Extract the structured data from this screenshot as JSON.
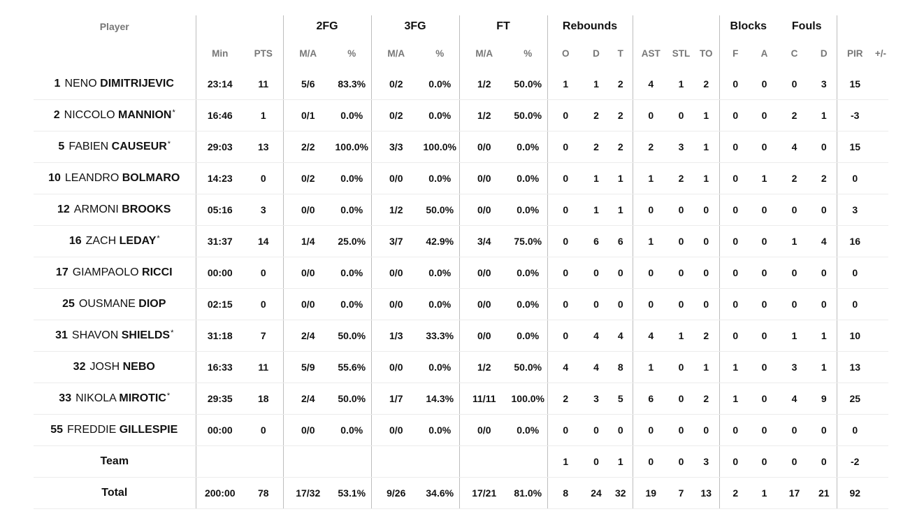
{
  "groups": {
    "player": "Player",
    "fg2": "2FG",
    "fg3": "3FG",
    "ft": "FT",
    "rebounds": "Rebounds",
    "blocks": "Blocks",
    "fouls": "Fouls"
  },
  "columns": {
    "min": "Min",
    "pts": "PTS",
    "fg2_ma": "M/A",
    "fg2_pct": "%",
    "fg3_ma": "M/A",
    "fg3_pct": "%",
    "ft_ma": "M/A",
    "ft_pct": "%",
    "reb_o": "O",
    "reb_d": "D",
    "reb_t": "T",
    "ast": "AST",
    "stl": "STL",
    "to": "TO",
    "blk_f": "F",
    "blk_a": "A",
    "foul_c": "C",
    "foul_d": "D",
    "pir": "PIR",
    "pm": "+/-"
  },
  "players": [
    {
      "num": "1",
      "first": "NENO",
      "last": "DIMITRIJEVIC",
      "starter": "",
      "min": "23:14",
      "pts": "11",
      "fg2_ma": "5/6",
      "fg2_pct": "83.3%",
      "fg3_ma": "0/2",
      "fg3_pct": "0.0%",
      "ft_ma": "1/2",
      "ft_pct": "50.0%",
      "reb_o": "1",
      "reb_d": "1",
      "reb_t": "2",
      "ast": "4",
      "stl": "1",
      "to": "2",
      "blk_f": "0",
      "blk_a": "0",
      "foul_c": "0",
      "foul_d": "3",
      "pir": "15",
      "pm": ""
    },
    {
      "num": "2",
      "first": "NICCOLO",
      "last": "MANNION",
      "starter": "*",
      "min": "16:46",
      "pts": "1",
      "fg2_ma": "0/1",
      "fg2_pct": "0.0%",
      "fg3_ma": "0/2",
      "fg3_pct": "0.0%",
      "ft_ma": "1/2",
      "ft_pct": "50.0%",
      "reb_o": "0",
      "reb_d": "2",
      "reb_t": "2",
      "ast": "0",
      "stl": "0",
      "to": "1",
      "blk_f": "0",
      "blk_a": "0",
      "foul_c": "2",
      "foul_d": "1",
      "pir": "-3",
      "pm": ""
    },
    {
      "num": "5",
      "first": "FABIEN",
      "last": "CAUSEUR",
      "starter": "*",
      "min": "29:03",
      "pts": "13",
      "fg2_ma": "2/2",
      "fg2_pct": "100.0%",
      "fg3_ma": "3/3",
      "fg3_pct": "100.0%",
      "ft_ma": "0/0",
      "ft_pct": "0.0%",
      "reb_o": "0",
      "reb_d": "2",
      "reb_t": "2",
      "ast": "2",
      "stl": "3",
      "to": "1",
      "blk_f": "0",
      "blk_a": "0",
      "foul_c": "4",
      "foul_d": "0",
      "pir": "15",
      "pm": ""
    },
    {
      "num": "10",
      "first": "LEANDRO",
      "last": "BOLMARO",
      "starter": "",
      "min": "14:23",
      "pts": "0",
      "fg2_ma": "0/2",
      "fg2_pct": "0.0%",
      "fg3_ma": "0/0",
      "fg3_pct": "0.0%",
      "ft_ma": "0/0",
      "ft_pct": "0.0%",
      "reb_o": "0",
      "reb_d": "1",
      "reb_t": "1",
      "ast": "1",
      "stl": "2",
      "to": "1",
      "blk_f": "0",
      "blk_a": "1",
      "foul_c": "2",
      "foul_d": "2",
      "pir": "0",
      "pm": ""
    },
    {
      "num": "12",
      "first": "ARMONI",
      "last": "BROOKS",
      "starter": "",
      "min": "05:16",
      "pts": "3",
      "fg2_ma": "0/0",
      "fg2_pct": "0.0%",
      "fg3_ma": "1/2",
      "fg3_pct": "50.0%",
      "ft_ma": "0/0",
      "ft_pct": "0.0%",
      "reb_o": "0",
      "reb_d": "1",
      "reb_t": "1",
      "ast": "0",
      "stl": "0",
      "to": "0",
      "blk_f": "0",
      "blk_a": "0",
      "foul_c": "0",
      "foul_d": "0",
      "pir": "3",
      "pm": ""
    },
    {
      "num": "16",
      "first": "ZACH",
      "last": "LEDAY",
      "starter": "*",
      "min": "31:37",
      "pts": "14",
      "fg2_ma": "1/4",
      "fg2_pct": "25.0%",
      "fg3_ma": "3/7",
      "fg3_pct": "42.9%",
      "ft_ma": "3/4",
      "ft_pct": "75.0%",
      "reb_o": "0",
      "reb_d": "6",
      "reb_t": "6",
      "ast": "1",
      "stl": "0",
      "to": "0",
      "blk_f": "0",
      "blk_a": "0",
      "foul_c": "1",
      "foul_d": "4",
      "pir": "16",
      "pm": ""
    },
    {
      "num": "17",
      "first": "GIAMPAOLO",
      "last": "RICCI",
      "starter": "",
      "min": "00:00",
      "pts": "0",
      "fg2_ma": "0/0",
      "fg2_pct": "0.0%",
      "fg3_ma": "0/0",
      "fg3_pct": "0.0%",
      "ft_ma": "0/0",
      "ft_pct": "0.0%",
      "reb_o": "0",
      "reb_d": "0",
      "reb_t": "0",
      "ast": "0",
      "stl": "0",
      "to": "0",
      "blk_f": "0",
      "blk_a": "0",
      "foul_c": "0",
      "foul_d": "0",
      "pir": "0",
      "pm": ""
    },
    {
      "num": "25",
      "first": "OUSMANE",
      "last": "DIOP",
      "starter": "",
      "min": "02:15",
      "pts": "0",
      "fg2_ma": "0/0",
      "fg2_pct": "0.0%",
      "fg3_ma": "0/0",
      "fg3_pct": "0.0%",
      "ft_ma": "0/0",
      "ft_pct": "0.0%",
      "reb_o": "0",
      "reb_d": "0",
      "reb_t": "0",
      "ast": "0",
      "stl": "0",
      "to": "0",
      "blk_f": "0",
      "blk_a": "0",
      "foul_c": "0",
      "foul_d": "0",
      "pir": "0",
      "pm": ""
    },
    {
      "num": "31",
      "first": "SHAVON",
      "last": "SHIELDS",
      "starter": "*",
      "min": "31:18",
      "pts": "7",
      "fg2_ma": "2/4",
      "fg2_pct": "50.0%",
      "fg3_ma": "1/3",
      "fg3_pct": "33.3%",
      "ft_ma": "0/0",
      "ft_pct": "0.0%",
      "reb_o": "0",
      "reb_d": "4",
      "reb_t": "4",
      "ast": "4",
      "stl": "1",
      "to": "2",
      "blk_f": "0",
      "blk_a": "0",
      "foul_c": "1",
      "foul_d": "1",
      "pir": "10",
      "pm": ""
    },
    {
      "num": "32",
      "first": "JOSH",
      "last": "NEBO",
      "starter": "",
      "min": "16:33",
      "pts": "11",
      "fg2_ma": "5/9",
      "fg2_pct": "55.6%",
      "fg3_ma": "0/0",
      "fg3_pct": "0.0%",
      "ft_ma": "1/2",
      "ft_pct": "50.0%",
      "reb_o": "4",
      "reb_d": "4",
      "reb_t": "8",
      "ast": "1",
      "stl": "0",
      "to": "1",
      "blk_f": "1",
      "blk_a": "0",
      "foul_c": "3",
      "foul_d": "1",
      "pir": "13",
      "pm": ""
    },
    {
      "num": "33",
      "first": "NIKOLA",
      "last": "MIROTIC",
      "starter": "*",
      "min": "29:35",
      "pts": "18",
      "fg2_ma": "2/4",
      "fg2_pct": "50.0%",
      "fg3_ma": "1/7",
      "fg3_pct": "14.3%",
      "ft_ma": "11/11",
      "ft_pct": "100.0%",
      "reb_o": "2",
      "reb_d": "3",
      "reb_t": "5",
      "ast": "6",
      "stl": "0",
      "to": "2",
      "blk_f": "1",
      "blk_a": "0",
      "foul_c": "4",
      "foul_d": "9",
      "pir": "25",
      "pm": ""
    },
    {
      "num": "55",
      "first": "FREDDIE",
      "last": "GILLESPIE",
      "starter": "",
      "min": "00:00",
      "pts": "0",
      "fg2_ma": "0/0",
      "fg2_pct": "0.0%",
      "fg3_ma": "0/0",
      "fg3_pct": "0.0%",
      "ft_ma": "0/0",
      "ft_pct": "0.0%",
      "reb_o": "0",
      "reb_d": "0",
      "reb_t": "0",
      "ast": "0",
      "stl": "0",
      "to": "0",
      "blk_f": "0",
      "blk_a": "0",
      "foul_c": "0",
      "foul_d": "0",
      "pir": "0",
      "pm": ""
    }
  ],
  "team": {
    "label": "Team",
    "min": "",
    "pts": "",
    "fg2_ma": "",
    "fg2_pct": "",
    "fg3_ma": "",
    "fg3_pct": "",
    "ft_ma": "",
    "ft_pct": "",
    "reb_o": "1",
    "reb_d": "0",
    "reb_t": "1",
    "ast": "0",
    "stl": "0",
    "to": "3",
    "blk_f": "0",
    "blk_a": "0",
    "foul_c": "0",
    "foul_d": "0",
    "pir": "-2",
    "pm": ""
  },
  "total": {
    "label": "Total",
    "min": "200:00",
    "pts": "78",
    "fg2_ma": "17/32",
    "fg2_pct": "53.1%",
    "fg3_ma": "9/26",
    "fg3_pct": "34.6%",
    "ft_ma": "17/21",
    "ft_pct": "81.0%",
    "reb_o": "8",
    "reb_d": "24",
    "reb_t": "32",
    "ast": "19",
    "stl": "7",
    "to": "13",
    "blk_f": "2",
    "blk_a": "1",
    "foul_c": "17",
    "foul_d": "21",
    "pir": "92",
    "pm": ""
  }
}
